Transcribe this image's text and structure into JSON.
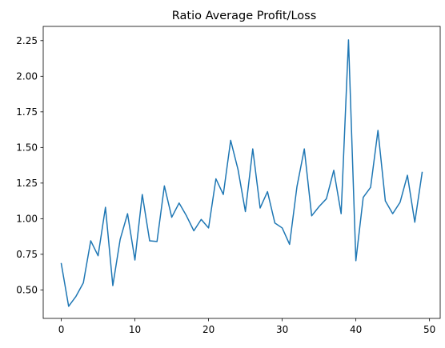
{
  "chart_data": {
    "type": "line",
    "title": "Ratio Average Profit/Loss",
    "xlabel": "",
    "ylabel": "",
    "xlim": [
      -2.45,
      51.45
    ],
    "ylim": [
      0.3,
      2.35
    ],
    "xticks": [
      0,
      10,
      20,
      30,
      40,
      50
    ],
    "yticks": [
      0.5,
      0.75,
      1.0,
      1.25,
      1.5,
      1.75,
      2.0,
      2.25
    ],
    "ytick_labels": [
      "0.50",
      "0.75",
      "1.00",
      "1.25",
      "1.50",
      "1.75",
      "2.00",
      "2.25"
    ],
    "xtick_labels": [
      "0",
      "10",
      "20",
      "30",
      "40",
      "50"
    ],
    "grid": false,
    "legend": "none",
    "line_color": "#1f77b4",
    "series": [
      {
        "x": [
          0,
          1,
          2,
          3,
          4,
          5,
          6,
          7,
          8,
          9,
          10,
          11,
          12,
          13,
          14,
          15,
          16,
          17,
          18,
          19,
          20,
          21,
          22,
          23,
          24,
          25,
          26,
          27,
          28,
          29,
          30,
          31,
          32,
          33,
          34,
          35,
          36,
          37,
          38,
          39,
          40,
          41,
          42,
          43,
          44,
          45,
          46,
          47,
          48,
          49
        ],
        "values": [
          0.685,
          0.385,
          0.455,
          0.55,
          0.845,
          0.74,
          1.08,
          0.53,
          0.855,
          1.035,
          0.71,
          1.17,
          0.845,
          0.84,
          1.23,
          1.01,
          1.11,
          1.02,
          0.915,
          0.995,
          0.935,
          1.28,
          1.17,
          1.55,
          1.345,
          1.05,
          1.49,
          1.075,
          1.19,
          0.97,
          0.935,
          0.82,
          1.225,
          1.49,
          1.02,
          1.085,
          1.14,
          1.34,
          1.035,
          2.255,
          0.705,
          1.15,
          1.22,
          1.62,
          1.125,
          1.035,
          1.115,
          1.305,
          0.975,
          1.325
        ]
      }
    ]
  }
}
